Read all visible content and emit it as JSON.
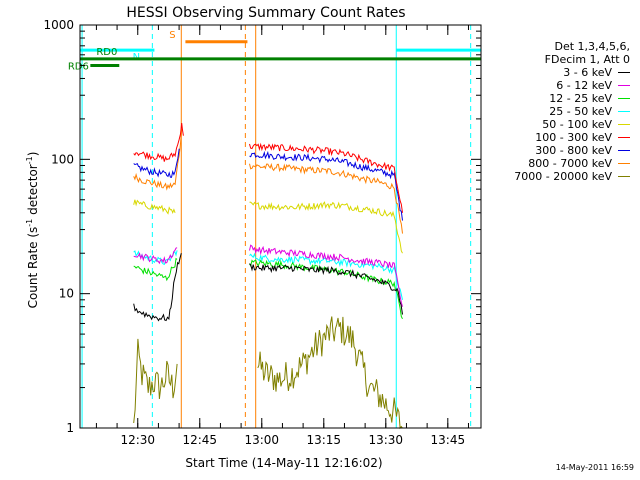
{
  "chart_data": {
    "type": "line",
    "title": "HESSI Observing Summary Count Rates",
    "xlabel": "Start Time (14-May-11 12:16:02)",
    "ylabel_prefix": "Count Rate (s",
    "ylabel_sup1": "-1",
    "ylabel_mid": " detector",
    "ylabel_sup2": "-1",
    "ylabel_suffix": ")",
    "y_scale": "log",
    "ylim": [
      1,
      1000
    ],
    "xlim_minutes_after_start": [
      0,
      97
    ],
    "x_tick_labels": [
      "12:30",
      "12:45",
      "13:00",
      "13:15",
      "13:30",
      "13:45"
    ],
    "x_tick_minutes": [
      13.97,
      28.97,
      43.97,
      58.97,
      73.97,
      88.97
    ],
    "y_tick_labels": [
      "1",
      "10",
      "100",
      "1000"
    ],
    "y_tick_values": [
      1,
      10,
      100,
      1000
    ],
    "legend_header": [
      "Det 1,3,4,5,6,",
      "FDecim 1, Att 0"
    ],
    "series": [
      {
        "name": "3 - 6 keV",
        "color": "#000000",
        "segments": [
          {
            "x": [
              13.0,
              14.0,
              15.0,
              16.0,
              17.0,
              18.0,
              19.0,
              20.5,
              21.5,
              22.0,
              23.0,
              24.5
            ],
            "y": [
              8.0,
              7.5,
              7.2,
              7.0,
              6.8,
              6.7,
              6.6,
              6.6,
              6.5,
              8.0,
              14.0,
              20.0
            ]
          },
          {
            "x": [
              41.0,
              44.0,
              48.0,
              52.0,
              56.0,
              60.0,
              64.0,
              68.0,
              72.0,
              75.0,
              77.0,
              78.0
            ],
            "y": [
              16.0,
              15.5,
              15.5,
              15.5,
              15.0,
              15.0,
              14.5,
              13.5,
              12.5,
              11.5,
              10.5,
              7.0
            ]
          }
        ]
      },
      {
        "name": "6 - 12 keV",
        "color": "#e000e0",
        "segments": [
          {
            "x": [
              13.0,
              15.0,
              18.0,
              21.0,
              23.5
            ],
            "y": [
              20.0,
              19.0,
              18.0,
              17.5,
              22.0
            ]
          },
          {
            "x": [
              41.0,
              44.0,
              48.0,
              52.0,
              56.0,
              60.0,
              64.0,
              68.0,
              72.0,
              76.0,
              78.0
            ],
            "y": [
              22.0,
              21.0,
              20.5,
              20.0,
              19.5,
              19.0,
              18.5,
              17.5,
              17.0,
              16.0,
              8.0
            ]
          }
        ]
      },
      {
        "name": "12 - 25 keV",
        "color": "#00e000",
        "segments": [
          {
            "x": [
              13.0,
              15.0,
              18.0,
              21.0,
              23.5
            ],
            "y": [
              16.0,
              15.0,
              14.0,
              13.0,
              18.0
            ]
          },
          {
            "x": [
              41.0,
              44.0,
              48.0,
              52.0,
              56.0,
              60.0,
              64.0,
              68.0,
              72.0,
              76.0,
              78.0
            ],
            "y": [
              17.0,
              16.8,
              16.5,
              16.0,
              15.5,
              15.0,
              14.5,
              13.5,
              12.5,
              12.0,
              6.5
            ]
          }
        ]
      },
      {
        "name": "25 - 50 keV",
        "color": "#00ffff",
        "segments": [
          {
            "x": [
              13.0,
              15.0,
              18.0,
              21.0,
              23.5
            ],
            "y": [
              20.0,
              19.0,
              18.0,
              17.0,
              21.0
            ]
          },
          {
            "x": [
              41.0,
              44.0,
              48.0,
              52.0,
              56.0,
              60.0,
              64.0,
              68.0,
              72.0,
              76.0,
              78.0
            ],
            "y": [
              19.0,
              18.5,
              18.0,
              18.0,
              17.5,
              17.5,
              17.0,
              16.5,
              16.0,
              15.0,
              9.0
            ]
          }
        ]
      },
      {
        "name": "50 - 100 keV",
        "color": "#d8d800",
        "segments": [
          {
            "x": [
              13.0,
              15.0,
              18.0,
              21.0,
              23.0
            ],
            "y": [
              48.0,
              46.0,
              44.0,
              42.0,
              40.0
            ]
          },
          {
            "x": [
              41.0,
              44.0,
              48.0,
              52.0,
              56.0,
              60.0,
              64.0,
              68.0,
              72.0,
              76.0,
              78.0
            ],
            "y": [
              46.0,
              45.0,
              44.5,
              44.0,
              45.0,
              46.0,
              45.0,
              43.0,
              41.0,
              38.0,
              20.0
            ]
          }
        ]
      },
      {
        "name": "100 - 300 keV",
        "color": "#ff0000",
        "segments": [
          {
            "x": [
              13.0,
              15.0,
              18.0,
              21.0,
              23.0,
              24.0,
              24.6,
              25.0
            ],
            "y": [
              115.0,
              110.0,
              105.0,
              100.0,
              110.0,
              140.0,
              190.0,
              150.0
            ]
          },
          {
            "x": [
              41.0,
              44.0,
              48.0,
              52.0,
              56.0,
              60.0,
              64.0,
              68.0,
              72.0,
              76.0,
              78.0
            ],
            "y": [
              125.0,
              124.0,
              122.0,
              120.0,
              118.0,
              115.0,
              110.0,
              100.0,
              92.0,
              85.0,
              40.0
            ]
          }
        ]
      },
      {
        "name": "300 - 800 keV",
        "color": "#0000e0",
        "segments": [
          {
            "x": [
              13.0,
              15.0,
              18.0,
              21.0,
              23.0,
              24.0
            ],
            "y": [
              90.0,
              85.0,
              80.0,
              77.0,
              78.0,
              120.0
            ]
          },
          {
            "x": [
              41.0,
              44.0,
              48.0,
              52.0,
              56.0,
              60.0,
              64.0,
              68.0,
              72.0,
              76.0,
              78.0
            ],
            "y": [
              110.0,
              108.0,
              105.0,
              104.0,
              102.0,
              100.0,
              95.0,
              88.0,
              82.0,
              76.0,
              35.0
            ]
          }
        ]
      },
      {
        "name": "800 - 7000 keV",
        "color": "#ff8000",
        "segments": [
          {
            "x": [
              13.0,
              15.0,
              18.0,
              21.0,
              23.0,
              24.0,
              24.6
            ],
            "y": [
              75.0,
              70.0,
              66.0,
              62.0,
              65.0,
              110.0,
              170.0
            ]
          },
          {
            "x": [
              41.0,
              44.0,
              48.0,
              52.0,
              56.0,
              60.0,
              64.0,
              68.0,
              72.0,
              76.0,
              78.0
            ],
            "y": [
              90.0,
              88.0,
              87.0,
              85.0,
              83.0,
              82.0,
              78.0,
              72.0,
              68.0,
              62.0,
              28.0
            ]
          }
        ]
      },
      {
        "name": "7000 - 20000 keV",
        "color": "#808000",
        "segments": [
          {
            "x": [
              13.0,
              14.0,
              15.0,
              16.5,
              18.0,
              19.5,
              21.0,
              22.5,
              23.5
            ],
            "y": [
              1.0,
              3.5,
              2.5,
              2.0,
              2.2,
              2.0,
              2.5,
              2.0,
              3.0
            ]
          },
          {
            "x": [
              43.0,
              45.0,
              48.0,
              51.0,
              54.0,
              57.0,
              60.0,
              63.0,
              66.0,
              68.0,
              70.0,
              72.0,
              74.0,
              76.0,
              78.0
            ],
            "y": [
              3.0,
              2.5,
              2.3,
              2.5,
              3.0,
              4.0,
              5.0,
              5.5,
              4.5,
              3.0,
              2.0,
              1.8,
              1.5,
              1.3,
              1.0
            ]
          }
        ]
      }
    ],
    "flag_bars": [
      {
        "label": "N",
        "color": "#00ffff",
        "x": [
          0,
          18.0
        ],
        "y": 650
      },
      {
        "label": "",
        "color": "#00ffff",
        "x": [
          76.5,
          97
        ],
        "y": 650
      },
      {
        "label": "S",
        "color": "#ff8000",
        "x": [
          25.5,
          40.5
        ],
        "y": 750
      },
      {
        "label": "RD0",
        "color": "#008000",
        "x": [
          0,
          97
        ],
        "y": 560
      },
      {
        "label": "RD6",
        "color": "#008000",
        "x": [
          2.5,
          9.5
        ],
        "y": 500
      }
    ],
    "vertical_lines": [
      {
        "x": 0.5,
        "color": "#00ffff",
        "style": "solid"
      },
      {
        "x": 17.5,
        "color": "#00ffff",
        "style": "dashed"
      },
      {
        "x": 24.5,
        "color": "#ff8000",
        "style": "solid"
      },
      {
        "x": 40.0,
        "color": "#ff8000",
        "style": "dashed"
      },
      {
        "x": 42.5,
        "color": "#ff8000",
        "style": "solid"
      },
      {
        "x": 76.5,
        "color": "#00ffff",
        "style": "solid"
      },
      {
        "x": 94.5,
        "color": "#00ffff",
        "style": "dashed"
      }
    ],
    "timestamp": "14-May-2011 16:59"
  }
}
